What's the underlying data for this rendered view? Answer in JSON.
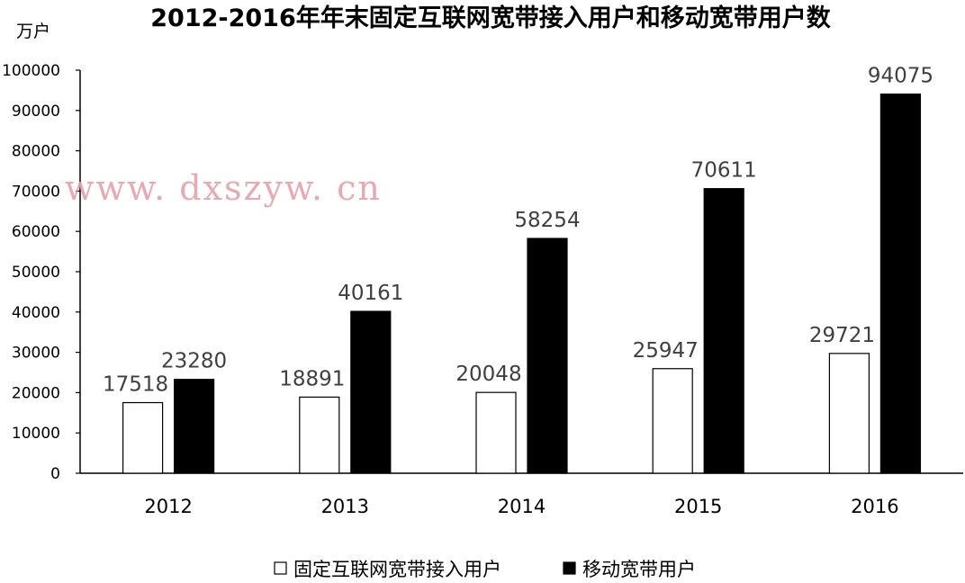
{
  "chart_data": {
    "type": "bar",
    "title": "2012-2016年年末固定互联网宽带接入用户和移动宽带用户数",
    "unit_label": "万户",
    "categories": [
      "2012",
      "2013",
      "2014",
      "2015",
      "2016"
    ],
    "series": [
      {
        "name": "固定互联网宽带接入用户",
        "values": [
          17518,
          18891,
          20048,
          25947,
          29721
        ],
        "color": "#ffffff",
        "stroke": "#000000"
      },
      {
        "name": "移动宽带用户",
        "values": [
          23280,
          40161,
          58254,
          70611,
          94075
        ],
        "color": "#000000",
        "stroke": "#000000"
      }
    ],
    "ylim": [
      0,
      100000
    ],
    "yticks": [
      "0",
      "10000",
      "20000",
      "30000",
      "40000",
      "50000",
      "60000",
      "70000",
      "80000",
      "90000",
      "100000"
    ],
    "grid": false,
    "legend": "bottom",
    "watermark": "www. dxszyw. cn"
  }
}
